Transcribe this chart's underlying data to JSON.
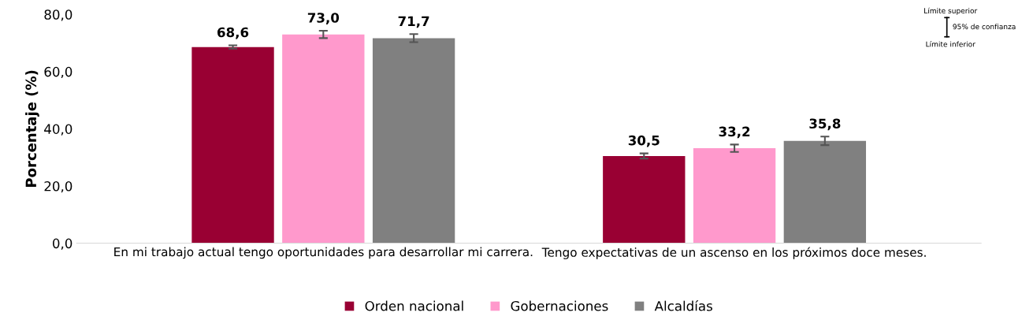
{
  "chart_data": {
    "type": "bar",
    "ylabel": "Porcentaje (%)",
    "categories": [
      "En mi trabajo actual tengo oportunidades para desarrollar mi carrera.",
      "Tengo expectativas de un ascenso en los próximos doce meses."
    ],
    "series": [
      {
        "name": "Orden nacional",
        "color": "#990033",
        "values": [
          68.6,
          30.5
        ],
        "errors": [
          0.6,
          0.9
        ],
        "value_labels": [
          "68,6",
          "30,5"
        ]
      },
      {
        "name": "Gobernaciones",
        "color": "#ff99cc",
        "values": [
          73.0,
          33.2
        ],
        "errors": [
          1.3,
          1.3
        ],
        "value_labels": [
          "73,0",
          "33,2"
        ]
      },
      {
        "name": "Alcaldías",
        "color": "#808080",
        "values": [
          71.7,
          35.8
        ],
        "errors": [
          1.4,
          1.5
        ],
        "value_labels": [
          "71,7",
          "35,8"
        ]
      }
    ],
    "ylim": [
      0,
      80
    ],
    "yticks": [
      {
        "value": 0,
        "label": "0,0"
      },
      {
        "value": 20,
        "label": "20,0"
      },
      {
        "value": 40,
        "label": "40,0"
      },
      {
        "value": 60,
        "label": "60,0"
      },
      {
        "value": 80,
        "label": "80,0"
      }
    ],
    "grid": false,
    "legend": "bottom",
    "annotations": [
      "Límite superior",
      "95% de confianza",
      "Límite inferior"
    ]
  }
}
